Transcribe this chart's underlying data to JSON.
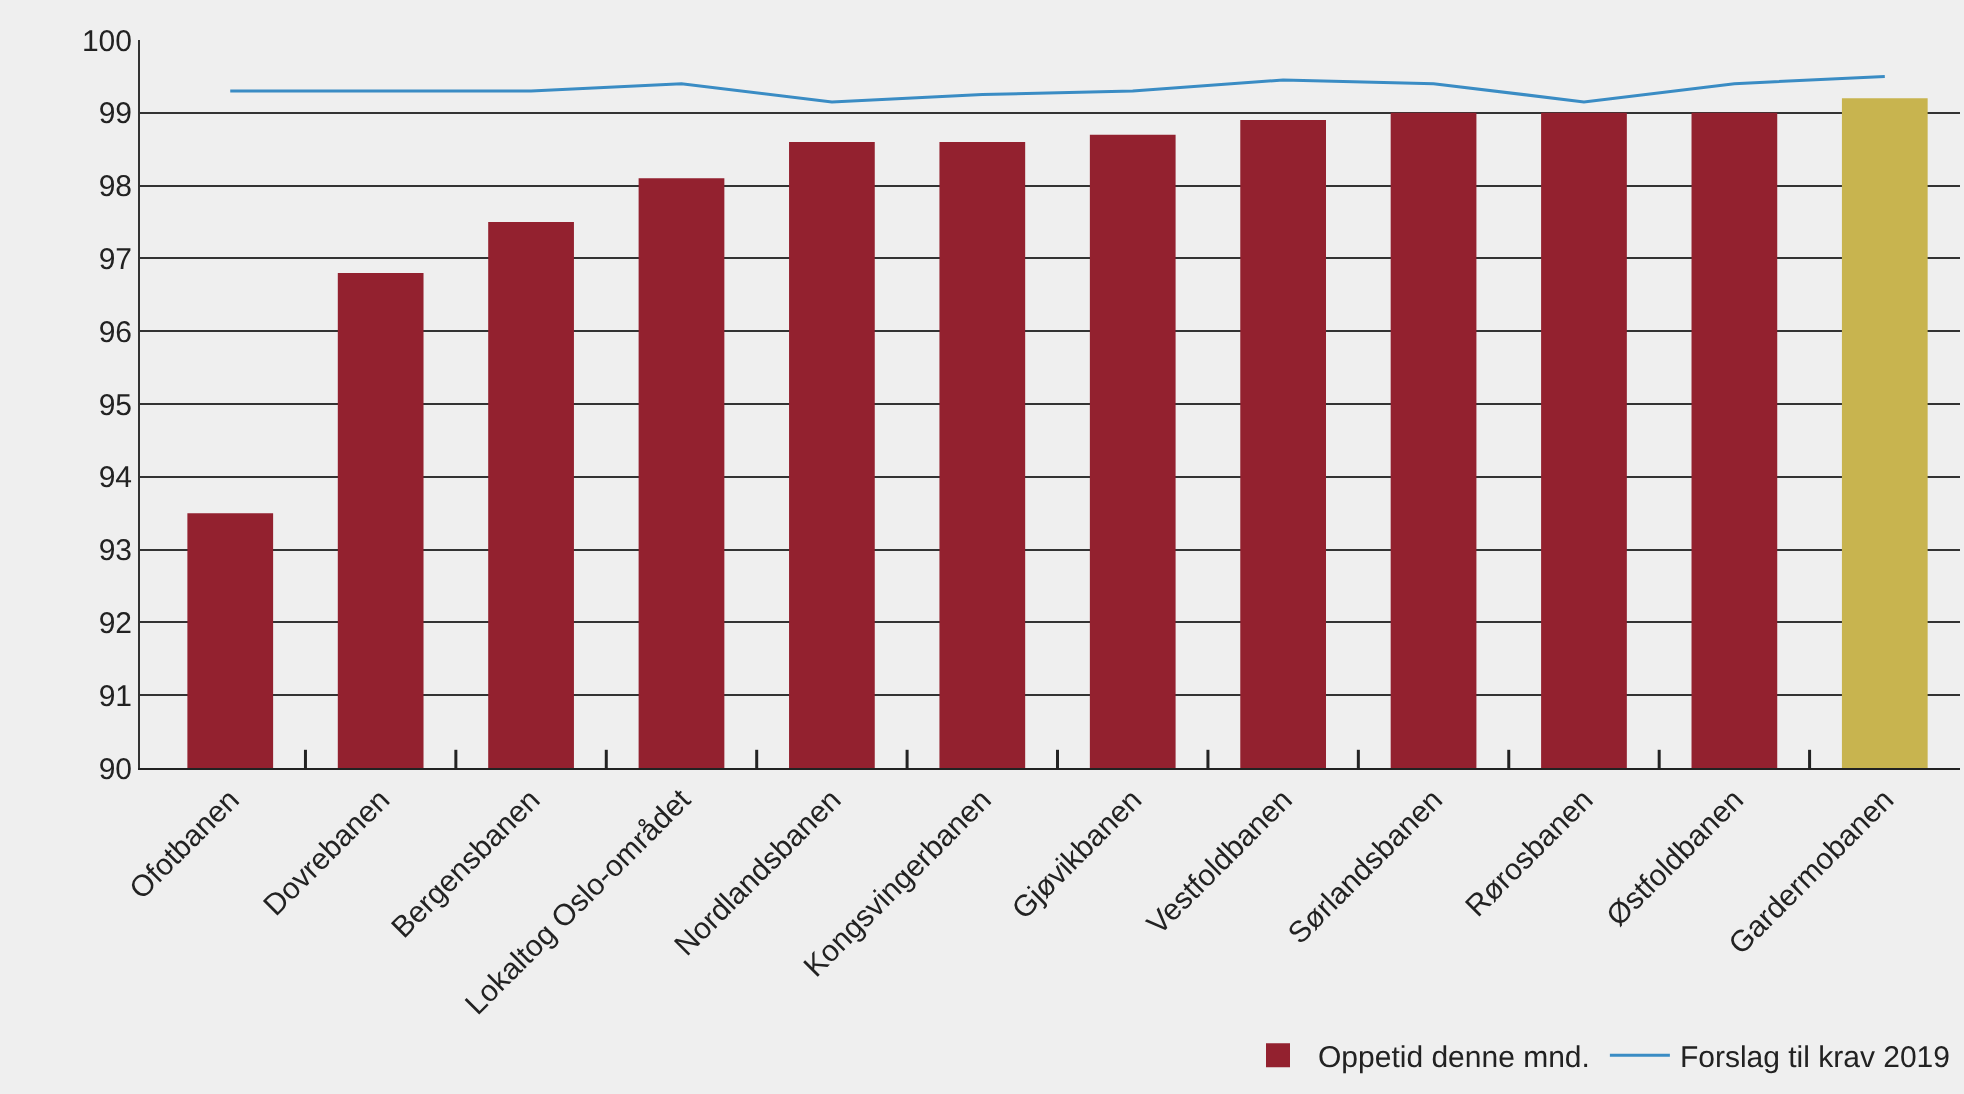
{
  "chart_data": {
    "type": "bar",
    "categories": [
      "Ofotbanen",
      "Dovrebanen",
      "Bergensbanen",
      "Lokaltog Oslo-området",
      "Nordlandsbanen",
      "Kongsvingerbanen",
      "Gjøvikbanen",
      "Vestfoldbanen",
      "Sørlandsbanen",
      "Rørosbanen",
      "Østfoldbanen",
      "Gardermobanen"
    ],
    "series": [
      {
        "name": "Oppetid denne mnd.",
        "colors": [
          "#93212f",
          "#93212f",
          "#93212f",
          "#93212f",
          "#93212f",
          "#93212f",
          "#93212f",
          "#93212f",
          "#93212f",
          "#93212f",
          "#93212f",
          "#c8b44f"
        ],
        "values": [
          93.5,
          96.8,
          97.5,
          98.1,
          98.6,
          98.6,
          98.7,
          98.9,
          99.0,
          99.0,
          99.0,
          99.2
        ]
      },
      {
        "name": "Forslag til krav 2019",
        "type": "line",
        "color": "#3a8cc4",
        "values": [
          99.3,
          99.3,
          99.3,
          99.4,
          99.15,
          99.25,
          99.3,
          99.45,
          99.4,
          99.15,
          99.4,
          99.5
        ]
      }
    ],
    "ylim": [
      90,
      100
    ],
    "yticks": [
      90,
      91,
      92,
      93,
      94,
      95,
      96,
      97,
      98,
      99,
      100
    ],
    "grid": "y",
    "legend": "bottom right",
    "marker": "none",
    "line_style": "solid"
  }
}
